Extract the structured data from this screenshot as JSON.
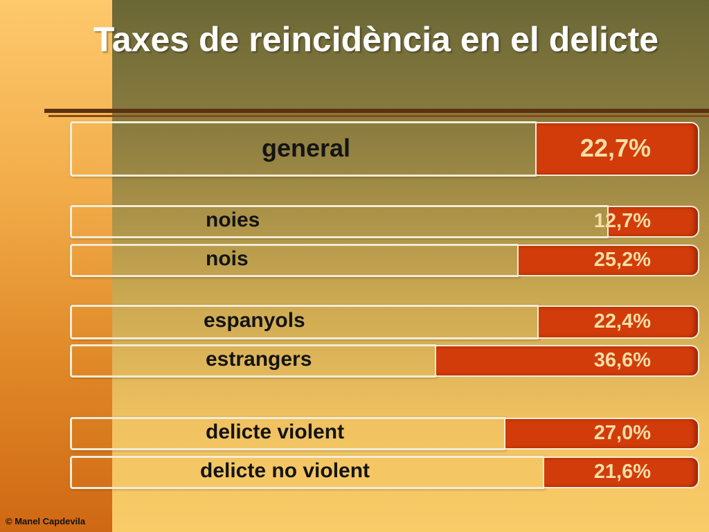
{
  "chart_data": {
    "type": "bar",
    "orientation": "horizontal",
    "title": "Taxes de reincidència en el delicte",
    "categories": [
      "general",
      "noies",
      "nois",
      "espanyols",
      "estrangers",
      "delicte violent",
      "delicte no violent"
    ],
    "values": [
      22.7,
      12.7,
      25.2,
      22.4,
      36.6,
      27.0,
      21.6
    ],
    "value_labels": [
      "22,7%",
      "12,7%",
      "25,2%",
      "22,4%",
      "36,6%",
      "27,0%",
      "21,6%"
    ],
    "unit": "%",
    "xlim": [
      0,
      100
    ],
    "grid": false,
    "legend": "none",
    "colors": {
      "fill": "#d23c0a",
      "track": "#f4ecd6",
      "title": "#ffffff",
      "label": "#141414"
    }
  },
  "credit": "© Manel Capdevila"
}
